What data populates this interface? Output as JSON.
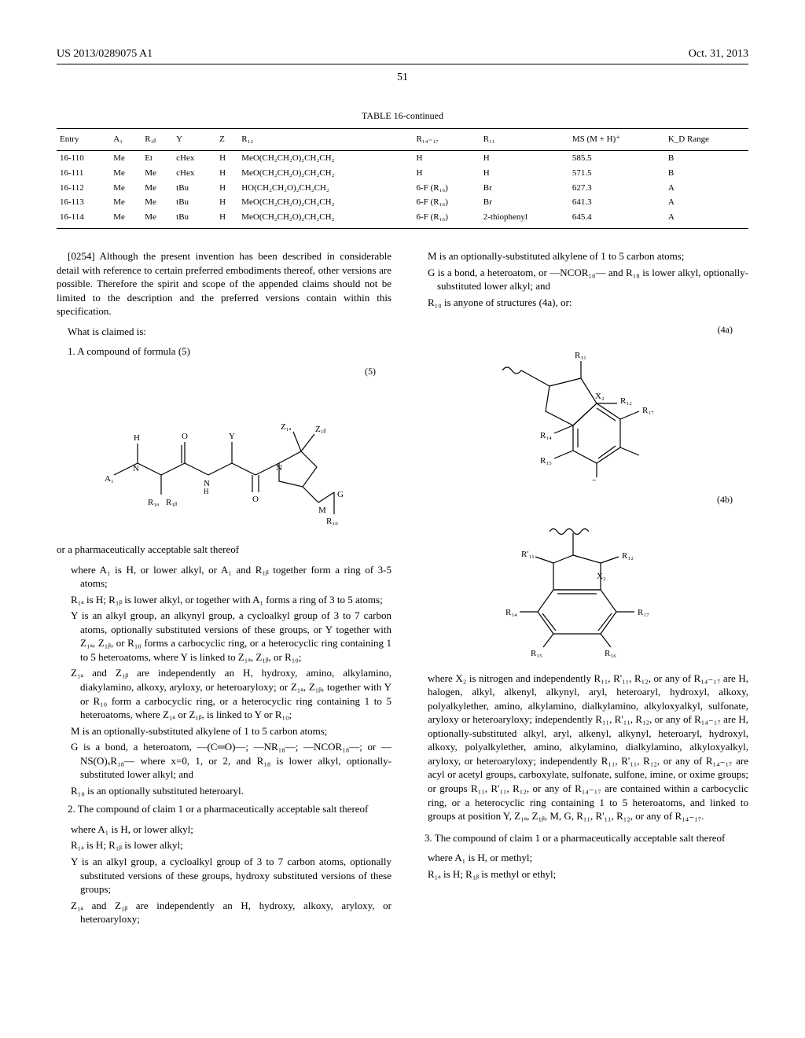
{
  "header": {
    "patent_no": "US 2013/0289075 A1",
    "date": "Oct. 31, 2013"
  },
  "page_number": "51",
  "table": {
    "caption": "TABLE 16-continued",
    "columns": [
      "Entry",
      "A₁",
      "R₁ᵦ",
      "Y",
      "Z",
      "R₁₂",
      "R₁₄₋₁₇",
      "R₁₁",
      "MS (M + H)⁺",
      "K_D Range"
    ],
    "rows": [
      [
        "16-110",
        "Me",
        "Et",
        "cHex",
        "H",
        "MeO(CH₂CH₂O)₂CH₂CH₂",
        "H",
        "H",
        "585.5",
        "B"
      ],
      [
        "16-111",
        "Me",
        "Me",
        "cHex",
        "H",
        "MeO(CH₂CH₂O)₂CH₂CH₂",
        "H",
        "H",
        "571.5",
        "B"
      ],
      [
        "16-112",
        "Me",
        "Me",
        "tBu",
        "H",
        "HO(CH₂CH₂O)₂CH₂CH₂",
        "6-F (R₁₆)",
        "Br",
        "627.3",
        "A"
      ],
      [
        "16-113",
        "Me",
        "Me",
        "tBu",
        "H",
        "MeO(CH₂CH₂O)₂CH₂CH₂",
        "6-F (R₁₆)",
        "Br",
        "641.3",
        "A"
      ],
      [
        "16-114",
        "Me",
        "Me",
        "tBu",
        "H",
        "MeO(CH₂CH₂O)₂CH₂CH₂",
        "6-F (R₁₆)",
        "2-thiophenyl",
        "645.4",
        "A"
      ]
    ]
  },
  "left_column": {
    "para_0254": "[0254]   Although the present invention has been described in considerable detail with reference to certain preferred embodiments thereof, other versions are possible. Therefore the spirit and scope of the appended claims should not be limited to the description and the preferred versions contain within this specification.",
    "what_claimed": "What is claimed is:",
    "claim1_intro": "1. A compound of formula (5)",
    "formula5_label": "(5)",
    "claim1_tail": "or a pharmaceutically acceptable salt thereof",
    "claim1_subs": [
      "where A₁ is H, or lower alkyl, or A₁ and R₁ᵦ together form a ring of 3-5 atoms;",
      "R₁ₐ is H; R₁ᵦ is lower alkyl, or together with A₁ forms a ring of 3 to 5 atoms;",
      "Y is an alkyl group, an alkynyl group, a cycloalkyl group of 3 to 7 carbon atoms, optionally substituted versions of these groups, or Y together with Z₁ₐ, Z₁ᵦ, or R₁₀ forms a carbocyclic ring, or a heterocyclic ring containing 1 to 5 heteroatoms, where Y is linked to Z₁ₐ, Z₁ᵦ, or R₁₀;",
      "Z₁ₐ and Z₁ᵦ are independently an H, hydroxy, amino, alkylamino, diakylamino, alkoxy, aryloxy, or heteroaryloxy; or Z₁ₐ, Z₁ᵦ, together with Y or R₁₀ form a carbocyclic ring, or a heterocyclic ring containing 1 to 5 heteroatoms, where Z₁ₐ or Z₁ᵦ, is linked to Y or R₁₀;",
      "M is an optionally-substituted alkylene of 1 to 5 carbon atoms;",
      "G is a bond, a heteroatom, —(C═O)—; —NR₁₈—; —NCOR₁₈—; or —NS(O)ₓR₁₈— where x=0, 1, or 2, and R₁₈ is lower alkyl, optionally-substituted lower alkyl; and",
      "R₁₀ is an optionally substituted heteroaryl."
    ],
    "claim2_intro": "2. The compound of claim 1 or a pharmaceutically acceptable salt thereof",
    "claim2_subs": [
      "where A₁ is H, or lower alkyl;",
      "R₁ₐ is H; R₁ᵦ is lower alkyl;",
      "Y is an alkyl group, a cycloalkyl group of 3 to 7 carbon atoms, optionally substituted versions of these groups, hydroxy substituted versions of these groups;",
      "Z₁ₐ and Z₁ᵦ are independently an H, hydroxy, alkoxy, aryloxy, or heteroaryloxy;"
    ]
  },
  "right_column": {
    "claim2_cont": [
      "M is an optionally-substituted alkylene of 1 to 5 carbon atoms;",
      "G is a bond, a heteroatom, or —NCOR₁₈— and R₁₈ is lower alkyl, optionally-substituted lower alkyl; and",
      "R₁₀ is anyone of structures (4a), or:"
    ],
    "formula4a_label": "(4a)",
    "formula4b_label": "(4b)",
    "where_x2": "where X₂ is nitrogen and independently R₁₁, R'₁₁, R₁₂, or any of R₁₄₋₁₇ are H, halogen, alkyl, alkenyl, alkynyl, aryl, heteroaryl, hydroxyl, alkoxy, polyalkylether, amino, alkylamino, dialkylamino, alkyloxyalkyl, sulfonate, aryloxy or heteroaryloxy; independently R₁₁, R'₁₁, R₁₂, or any of R₁₄₋₁₇ are H, optionally-substituted alkyl, aryl, alkenyl, alkynyl, heteroaryl, hydroxyl, alkoxy, polyalkylether, amino, alkylamino, dialkylamino, alkyloxyalkyl, aryloxy, or heteroaryloxy; independently R₁₁, R'₁₁, R₁₂, or any of R₁₄₋₁₇ are acyl or acetyl groups, carboxylate, sulfonate, sulfone, imine, or oxime groups; or groups R₁₁, R'₁₁, R₁₂, or any of R₁₄₋₁₇ are contained within a carbocyclic ring, or a heterocyclic ring containing 1 to 5 heteroatoms, and linked to groups at position Y, Z₁ₐ, Z₁ᵦ, M, G, R₁₁, R'₁₁, R₁₂, or any of R₁₄₋₁₇.",
    "claim3_intro": "3. The compound of claim 1 or a pharmaceutically acceptable salt thereof",
    "claim3_subs": [
      "where A₁ is H, or methyl;",
      "R₁ₐ is H; R₁ᵦ is methyl or ethyl;"
    ]
  }
}
